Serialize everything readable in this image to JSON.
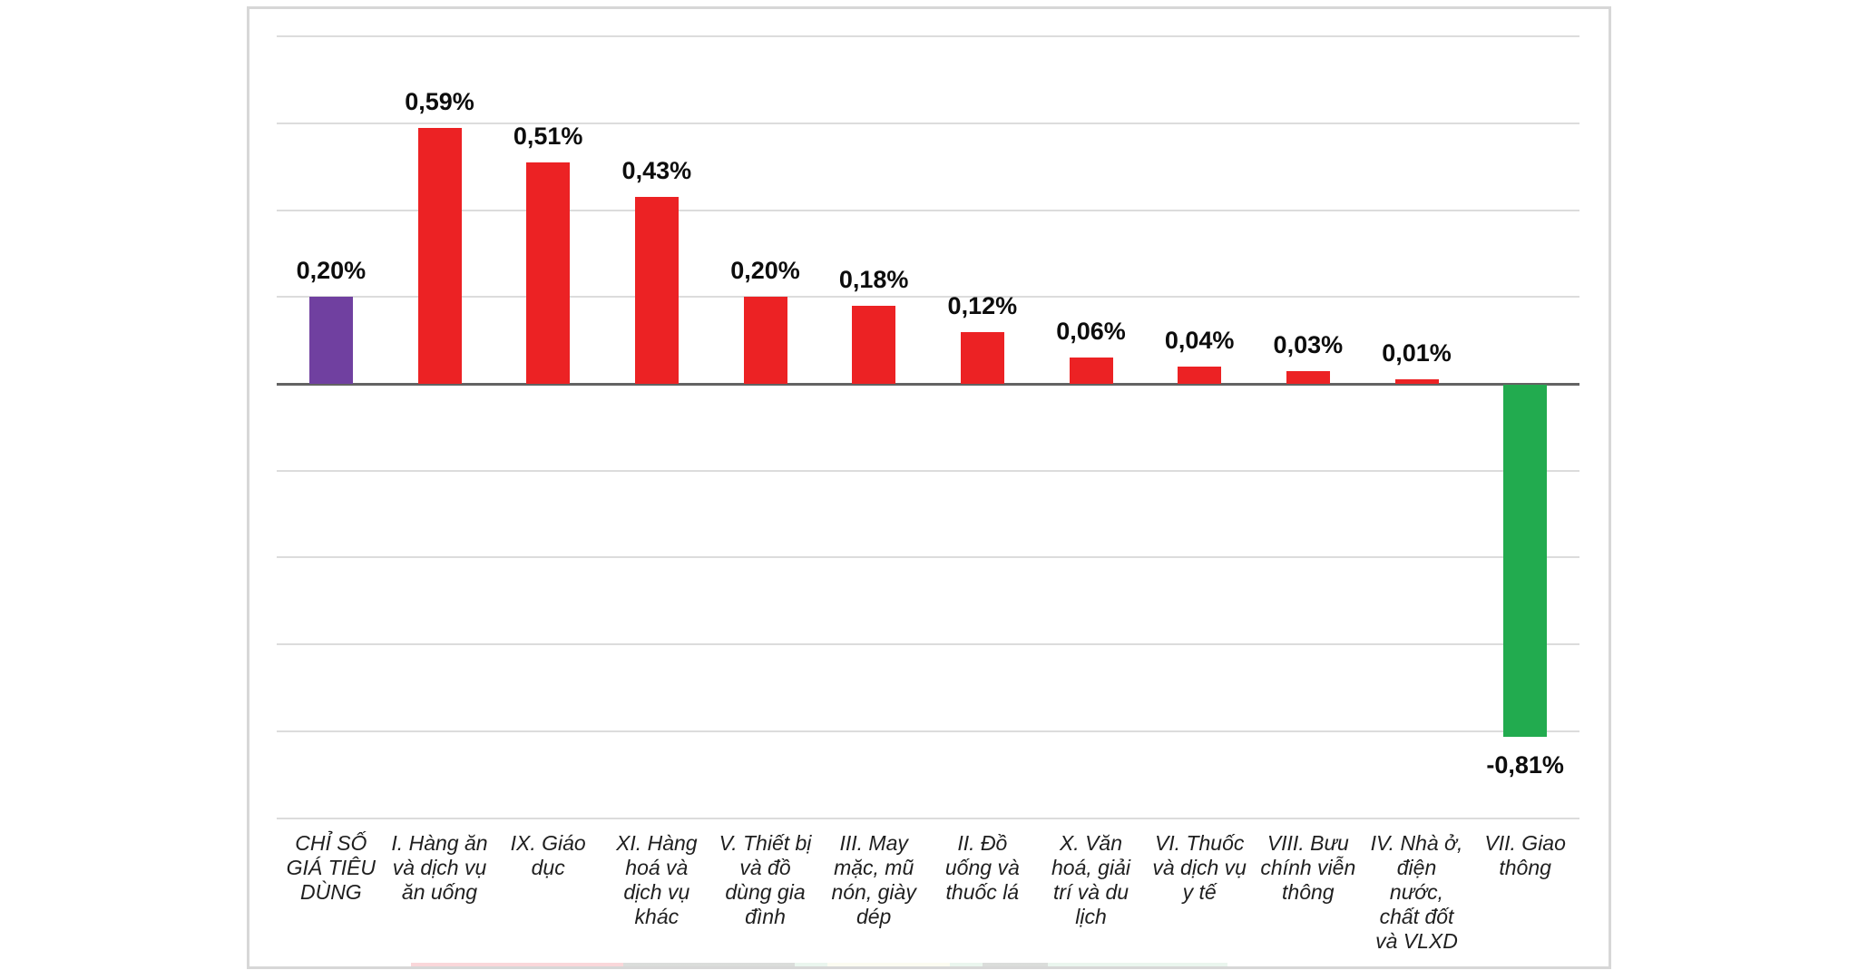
{
  "chart_data": {
    "type": "bar",
    "title": "",
    "unit": "%",
    "decimal_separator": ",",
    "legend": "none",
    "grid": true,
    "gridline_values": [
      0.8,
      0.6,
      0.4,
      0.2,
      -0.2,
      -0.4,
      -0.6,
      -0.8,
      -1.0
    ],
    "ylim": [
      -1.0,
      0.9
    ],
    "categories": [
      "CHỈ SỐ GIÁ TIÊU DÙNG",
      "I. Hàng ăn và dịch vụ ăn uống",
      "IX. Giáo dục",
      "XI. Hàng hoá và dịch vụ khác",
      "V. Thiết bị và đồ dùng gia đình",
      "III. May mặc, mũ nón, giày dép",
      "II. Đồ uống và thuốc lá",
      "X. Văn hoá, giải trí và du lịch",
      "VI. Thuốc và dịch vụ y tế",
      "VIII. Bưu chính viễn thông",
      "IV. Nhà ở, điện nước, chất đốt và VLXD",
      "VII. Giao thông"
    ],
    "category_lines": [
      [
        "CHỈ SỐ",
        "GIÁ TIÊU",
        "DÙNG"
      ],
      [
        "I. Hàng ăn",
        "và dịch vụ",
        "ăn uống"
      ],
      [
        "IX. Giáo",
        "dục"
      ],
      [
        "XI. Hàng",
        "hoá và",
        "dịch vụ",
        "khác"
      ],
      [
        "V. Thiết bị",
        "và đồ",
        "dùng gia",
        "đình"
      ],
      [
        "III. May",
        "mặc, mũ",
        "nón, giày",
        "dép"
      ],
      [
        "II. Đồ",
        "uống và",
        "thuốc lá"
      ],
      [
        "X. Văn",
        "hoá, giải",
        "trí và du",
        "lịch"
      ],
      [
        "VI. Thuốc",
        "và dịch vụ",
        "y tế"
      ],
      [
        "VIII. Bưu",
        "chính viễn",
        "thông"
      ],
      [
        "IV. Nhà ở,",
        "điện",
        "nước,",
        "chất đốt",
        "và VLXD"
      ],
      [
        "VII. Giao",
        "thông"
      ]
    ],
    "values": [
      0.2,
      0.59,
      0.51,
      0.43,
      0.2,
      0.18,
      0.12,
      0.06,
      0.04,
      0.03,
      0.01,
      -0.81
    ],
    "value_labels": [
      "0,20%",
      "0,59%",
      "0,51%",
      "0,43%",
      "0,20%",
      "0,18%",
      "0,12%",
      "0,06%",
      "0,04%",
      "0,03%",
      "0,01%",
      "-0,81%"
    ],
    "bar_colors": [
      "#7040A0",
      "#EC2224",
      "#EC2224",
      "#EC2224",
      "#EC2224",
      "#EC2224",
      "#EC2224",
      "#EC2224",
      "#EC2224",
      "#EC2224",
      "#EC2224",
      "#22AB4F"
    ]
  },
  "colors": {
    "cpi_bar": "#7040A0",
    "increase_bar": "#EC2224",
    "decrease_bar": "#22AB4F",
    "gridline": "#DCDCDC",
    "zero_axis": "#636363",
    "box_border": "#D7D7D7",
    "label_text": "#0D0D0D"
  }
}
